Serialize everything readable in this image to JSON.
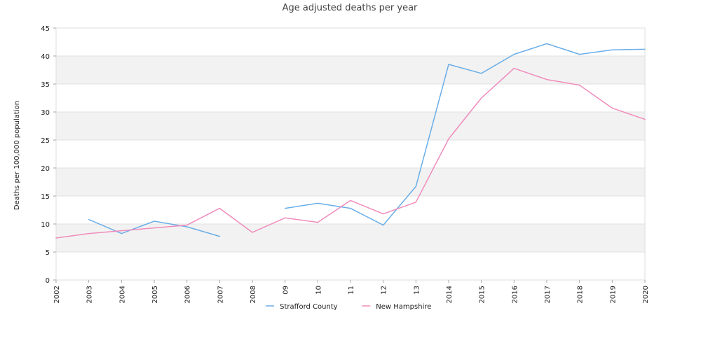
{
  "chart_data": {
    "type": "line",
    "title": "Age adjusted deaths per year",
    "xlabel": "",
    "ylabel": "Deaths per 100,000 population",
    "x": [
      "2002",
      "2003",
      "2004",
      "2005",
      "2006",
      "2007",
      "2008",
      "09",
      "10",
      "11",
      "12",
      "13",
      "2014",
      "2015",
      "2016",
      "2017",
      "2018",
      "2019",
      "2020"
    ],
    "ylim": [
      0,
      45
    ],
    "yticks": [
      0,
      5,
      10,
      15,
      20,
      25,
      30,
      35,
      40,
      45
    ],
    "grid": "alternating horizontal bands",
    "legend_position": "bottom-center",
    "series": [
      {
        "name": "Strafford County",
        "color": "#6aaee8",
        "values": [
          null,
          10.8,
          8.3,
          10.5,
          9.5,
          7.8,
          null,
          12.8,
          13.7,
          12.8,
          9.8,
          16.7,
          38.5,
          36.9,
          40.3,
          42.2,
          40.3,
          41.1,
          41.2
        ]
      },
      {
        "name": "New Hampshire",
        "color": "#f08cbc",
        "values": [
          7.5,
          8.3,
          8.8,
          9.3,
          9.8,
          12.8,
          8.5,
          11.1,
          10.3,
          14.2,
          11.8,
          13.9,
          25.2,
          32.5,
          37.8,
          35.8,
          34.8,
          30.7,
          28.7
        ]
      }
    ]
  }
}
